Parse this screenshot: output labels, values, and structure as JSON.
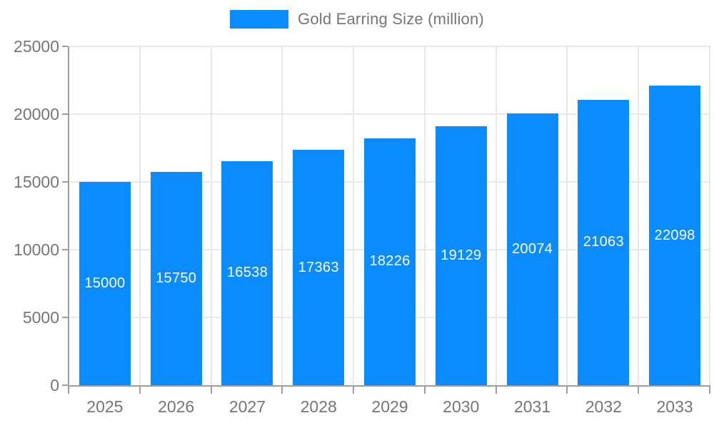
{
  "chart_data": {
    "type": "bar",
    "title": "",
    "legend": {
      "label": "Gold Earring Size (million)",
      "position": "top-center"
    },
    "categories": [
      "2025",
      "2026",
      "2027",
      "2028",
      "2029",
      "2030",
      "2031",
      "2032",
      "2033"
    ],
    "values": [
      15000,
      15750,
      16538,
      17363,
      18226,
      19129,
      20074,
      21063,
      22098
    ],
    "value_labels": [
      "15000",
      "15750",
      "16538",
      "17363",
      "18226",
      "19129",
      "20074",
      "21063",
      "22098"
    ],
    "xlabel": "",
    "ylabel": "",
    "ylim": [
      0,
      25000
    ],
    "ytick_step": 5000,
    "ytick_labels": [
      "0",
      "5000",
      "10000",
      "15000",
      "20000",
      "25000"
    ],
    "grid": true,
    "colors": {
      "bar": "#0a8cff",
      "bar_value_text": "#ffffff",
      "axis": "#9e9e9e",
      "gridline": "#e8e8e8",
      "tick_text": "#757575",
      "legend_text": "#757575"
    }
  }
}
